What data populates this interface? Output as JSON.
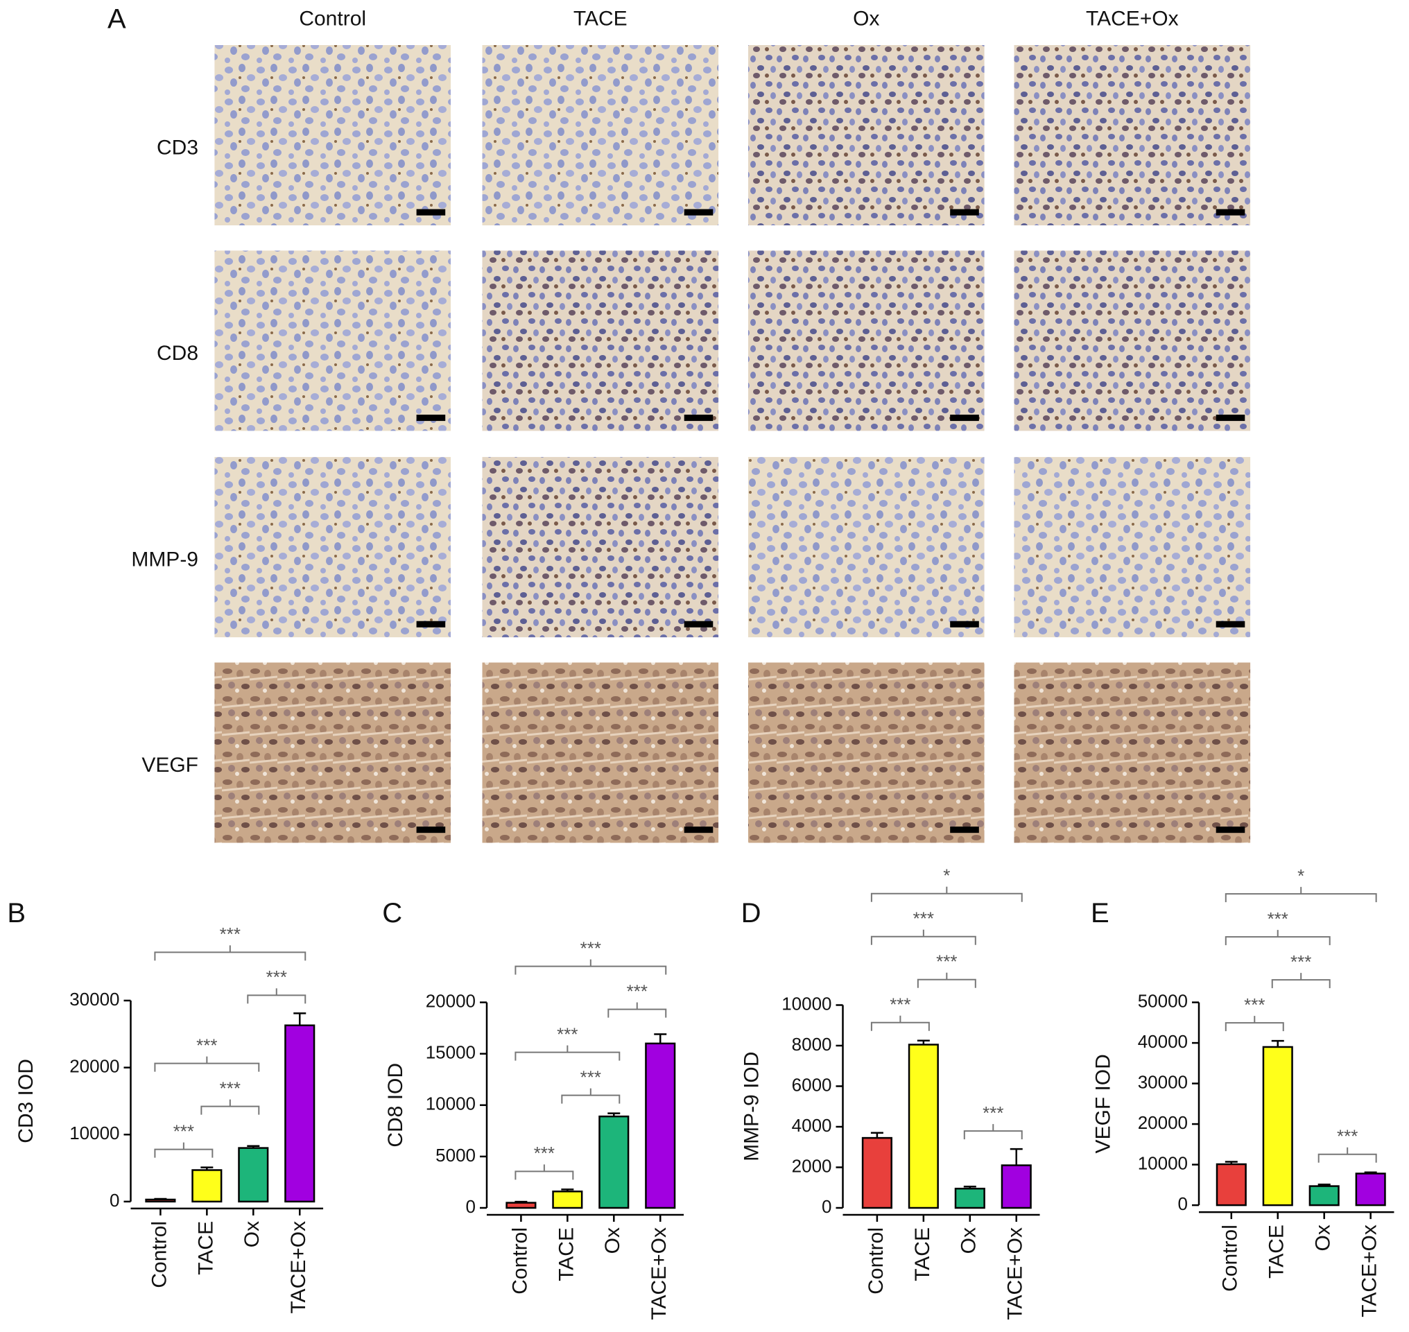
{
  "panel_a": {
    "label": "A",
    "columns": [
      "Control",
      "TACE",
      "Ox",
      "TACE+Ox"
    ],
    "rows": [
      "CD3",
      "CD8",
      "MMP-9",
      "VEGF"
    ]
  },
  "chart_data": [
    {
      "type": "bar",
      "panel_label": "B",
      "ylabel": "CD3 IOD",
      "categories": [
        "Control",
        "TACE",
        "Ox",
        "TACE+Ox"
      ],
      "values": [
        300,
        4700,
        8000,
        26300
      ],
      "errors": [
        100,
        400,
        300,
        1800
      ],
      "colors": [
        "#e8403c",
        "#ffff1a",
        "#1db57a",
        "#a100e0"
      ],
      "ylim": [
        0,
        30000
      ],
      "yticks": [
        0,
        10000,
        20000,
        30000
      ],
      "annotations": [
        {
          "text": "***",
          "groups": [
            0,
            1
          ]
        },
        {
          "text": "***",
          "groups": [
            1,
            2
          ]
        },
        {
          "text": "***",
          "groups": [
            0,
            2
          ]
        },
        {
          "text": "***",
          "groups": [
            2,
            3
          ]
        },
        {
          "text": "***",
          "groups": [
            0,
            3
          ]
        }
      ]
    },
    {
      "type": "bar",
      "panel_label": "C",
      "ylabel": "CD8 IOD",
      "categories": [
        "Control",
        "TACE",
        "Ox",
        "TACE+Ox"
      ],
      "values": [
        500,
        1600,
        8900,
        16000
      ],
      "errors": [
        100,
        200,
        300,
        900
      ],
      "colors": [
        "#e8403c",
        "#ffff1a",
        "#1db57a",
        "#a100e0"
      ],
      "ylim": [
        0,
        20000
      ],
      "yticks": [
        0,
        5000,
        10000,
        15000,
        20000
      ],
      "annotations": [
        {
          "text": "***",
          "groups": [
            0,
            1
          ]
        },
        {
          "text": "***",
          "groups": [
            1,
            2
          ]
        },
        {
          "text": "***",
          "groups": [
            0,
            2
          ]
        },
        {
          "text": "***",
          "groups": [
            2,
            3
          ]
        },
        {
          "text": "***",
          "groups": [
            0,
            3
          ]
        }
      ]
    },
    {
      "type": "bar",
      "panel_label": "D",
      "ylabel": "MMP-9 IOD",
      "categories": [
        "Control",
        "TACE",
        "Ox",
        "TACE+Ox"
      ],
      "values": [
        3450,
        8050,
        950,
        2100
      ],
      "errors": [
        250,
        200,
        100,
        800
      ],
      "colors": [
        "#e8403c",
        "#ffff1a",
        "#1db57a",
        "#a100e0"
      ],
      "ylim": [
        0,
        10000
      ],
      "yticks": [
        0,
        2000,
        4000,
        6000,
        8000,
        10000
      ],
      "annotations": [
        {
          "text": "***",
          "groups": [
            0,
            1
          ]
        },
        {
          "text": "***",
          "groups": [
            2,
            3
          ]
        },
        {
          "text": "***",
          "groups": [
            1,
            2
          ]
        },
        {
          "text": "***",
          "groups": [
            0,
            2
          ]
        },
        {
          "text": "*",
          "groups": [
            0,
            3
          ]
        }
      ]
    },
    {
      "type": "bar",
      "panel_label": "E",
      "ylabel": "VEGF IOD",
      "categories": [
        "Control",
        "TACE",
        "Ox",
        "TACE+Ox"
      ],
      "values": [
        10100,
        39000,
        4700,
        7800
      ],
      "errors": [
        600,
        1500,
        400,
        300
      ],
      "colors": [
        "#e8403c",
        "#ffff1a",
        "#1db57a",
        "#a100e0"
      ],
      "ylim": [
        0,
        50000
      ],
      "yticks": [
        0,
        10000,
        20000,
        30000,
        40000,
        50000
      ],
      "annotations": [
        {
          "text": "***",
          "groups": [
            0,
            1
          ]
        },
        {
          "text": "***",
          "groups": [
            2,
            3
          ]
        },
        {
          "text": "***",
          "groups": [
            1,
            2
          ]
        },
        {
          "text": "***",
          "groups": [
            0,
            2
          ]
        },
        {
          "text": "*",
          "groups": [
            0,
            3
          ]
        }
      ]
    }
  ]
}
